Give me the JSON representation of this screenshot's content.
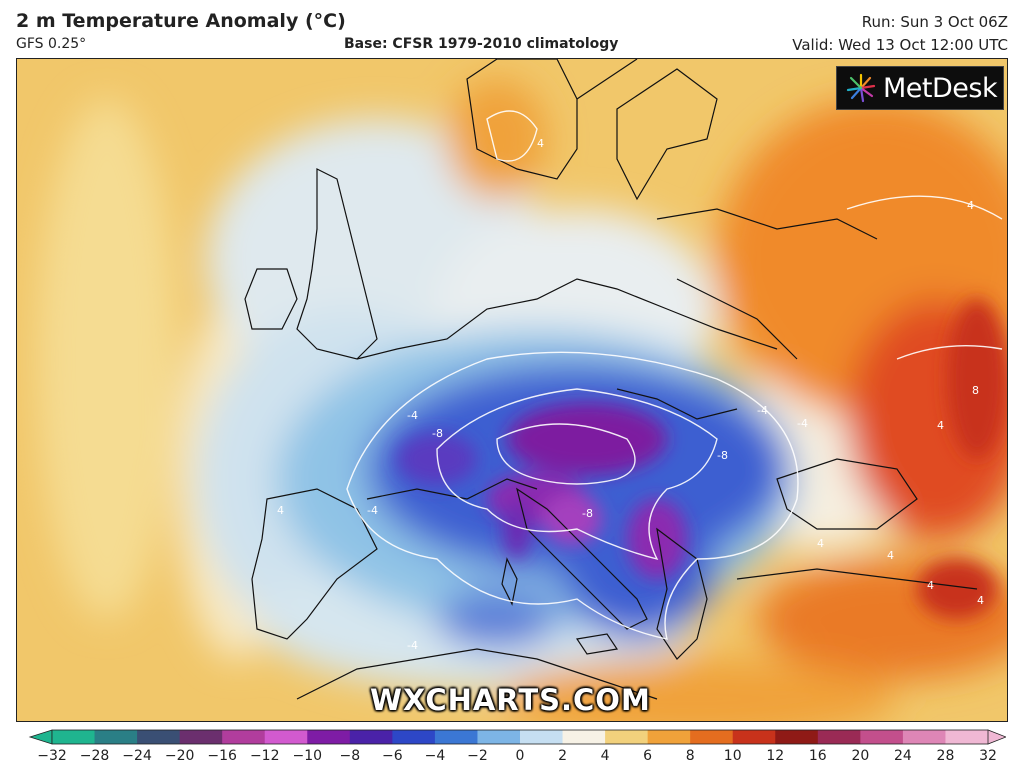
{
  "header": {
    "title": "2 m Temperature Anomaly (°C)",
    "model": "GFS 0.25°",
    "base": "Base: CFSR 1979-2010 climatology",
    "run": "Run: Sun 3 Oct 06Z",
    "valid": "Valid: Wed 13 Oct 12:00 UTC"
  },
  "logo": {
    "text": "MetDesk"
  },
  "watermark": "WXCHARTS.COM",
  "map": {
    "contour_labels": [
      "4",
      "-4",
      "-8",
      "-4",
      "-8",
      "-4",
      "-4",
      "-8",
      "4",
      "4",
      "4",
      "4",
      "8",
      "4",
      "4",
      "-4",
      "4"
    ],
    "colors": {
      "ocean_warm": "#f1c76a",
      "near_zero": "#f5f3ea",
      "cold": "#8fc3e6",
      "colder": "#3e5fd1",
      "coldest": "#7d1fa0",
      "warm": "#f08a2a",
      "hot": "#d8251c"
    }
  },
  "colorbar": {
    "ticks": [
      "−32",
      "−28",
      "−24",
      "−20",
      "−16",
      "−12",
      "−10",
      "−8",
      "−6",
      "−4",
      "−2",
      "0",
      "2",
      "4",
      "6",
      "8",
      "10",
      "12",
      "16",
      "20",
      "24",
      "28",
      "32"
    ],
    "colors": [
      "#1fb58f",
      "#2a7f86",
      "#3a4f74",
      "#6b2f6e",
      "#b13d9d",
      "#d25acf",
      "#7e1ca5",
      "#4a22a8",
      "#2d47c7",
      "#3b77d4",
      "#7db5e6",
      "#c6dff2",
      "#f7f2e6",
      "#f2d17c",
      "#f0a23a",
      "#e46d1f",
      "#c8321b",
      "#8f1a16",
      "#9a2a55",
      "#c34f8c",
      "#de86b6",
      "#f0b8d4"
    ]
  }
}
